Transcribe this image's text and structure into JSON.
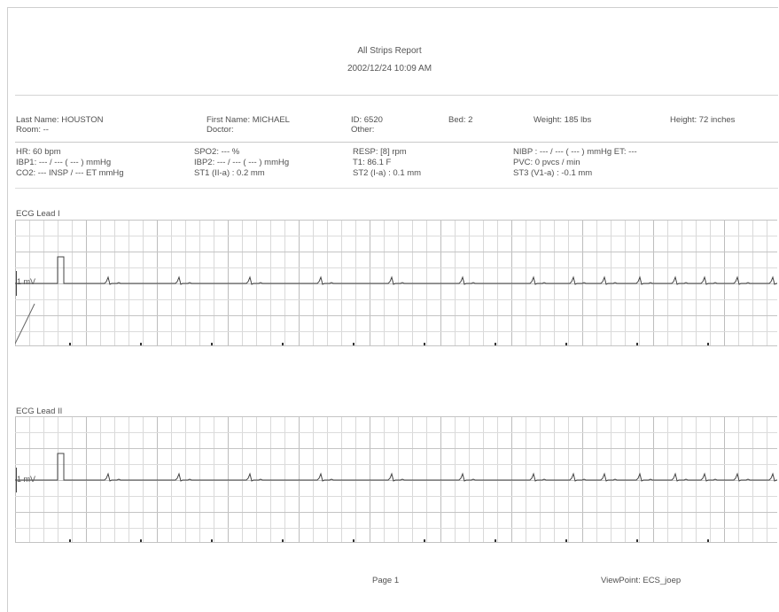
{
  "report": {
    "title": "All Strips Report",
    "datetime": "2002/12/24 10:09 AM"
  },
  "patient": {
    "last_name": "Last Name: HOUSTON",
    "room": "Room: --",
    "first_name": "First Name: MICHAEL",
    "doctor": "Doctor:",
    "id": "ID: 6520",
    "other": "Other:",
    "bed": "Bed: 2",
    "weight": "Weight: 185 lbs",
    "height": "Height: 72 inches"
  },
  "vitals": {
    "hr": "HR: 60 bpm",
    "ibp1": "IBP1: --- / --- ( --- ) mmHg",
    "co2": "CO2: --- INSP / --- ET mmHg",
    "spo2": "SPO2: --- %",
    "ibp2": "IBP2: --- / --- ( --- ) mmHg",
    "st1": "ST1 (II-a) : 0.2 mm",
    "resp": "RESP: [8] rpm",
    "t1": "T1:  86.1 F",
    "st2": "ST2 (I-a) : 0.1 mm",
    "nibp": "NIBP :  --- / --- ( --- ) mmHg ET: ---",
    "pvc": "PVC:  0 pvcs / min",
    "st3": "ST3 (V1-a) : -0.1 mm"
  },
  "strips": [
    {
      "label": "ECG Lead I",
      "scale_label": "1 mV",
      "beat_positions": [
        105,
        185,
        265,
        345,
        425,
        505,
        585,
        630,
        665,
        705,
        745,
        778,
        815,
        855
      ]
    },
    {
      "label": "ECG Lead II",
      "scale_label": "1 mV",
      "beat_positions": [
        105,
        185,
        265,
        345,
        425,
        505,
        585,
        630,
        665,
        705,
        745,
        778,
        815,
        855
      ]
    }
  ],
  "footer": {
    "page": "Page 1",
    "viewpoint": "ViewPoint: ECS_joep"
  }
}
